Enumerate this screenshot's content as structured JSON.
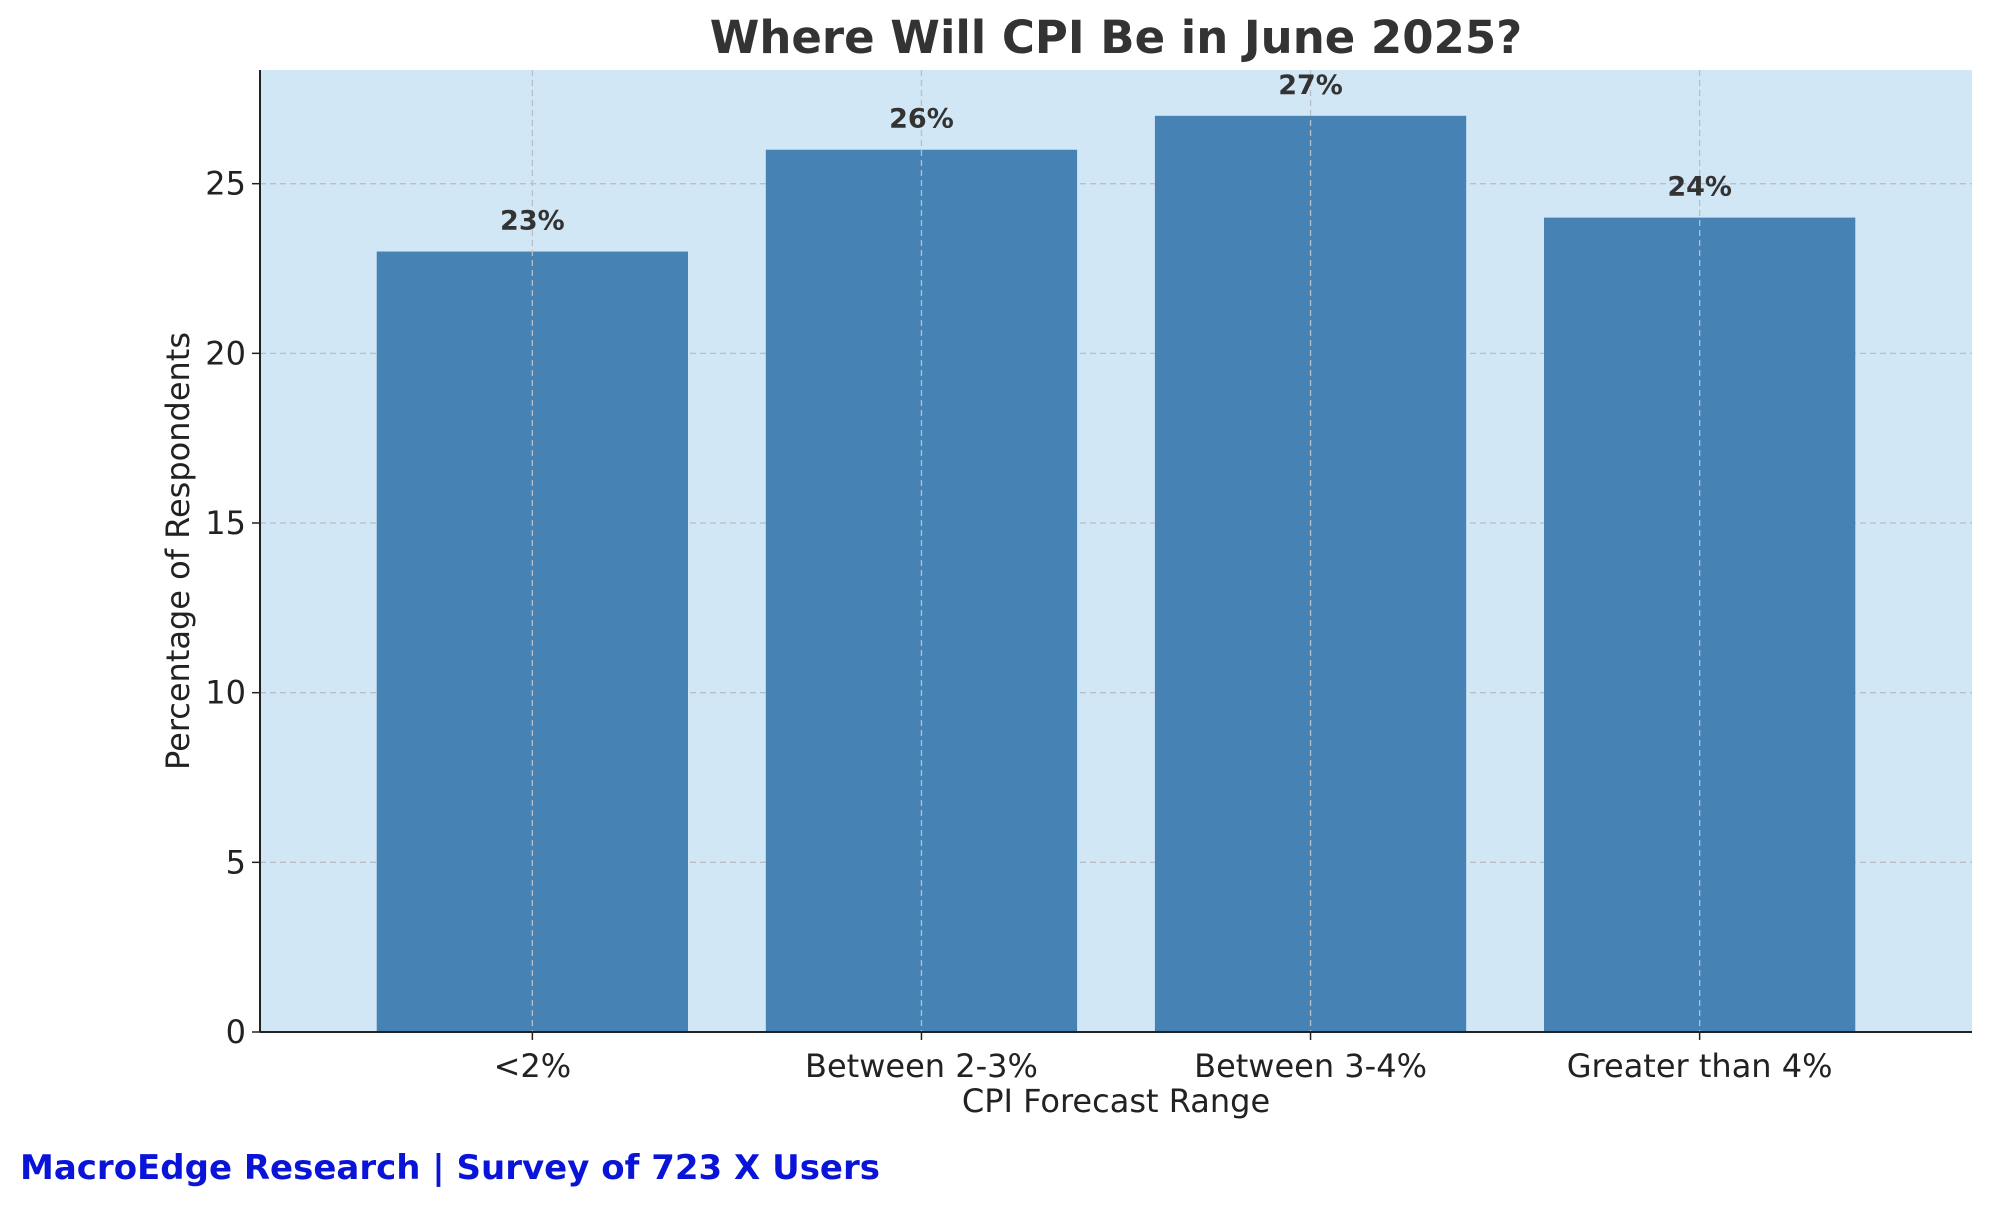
{
  "chart_data": {
    "type": "bar",
    "title": "Where Will CPI Be in June 2025?",
    "xlabel": "CPI Forecast Range",
    "ylabel": "Percentage of Respondents",
    "categories": [
      "<2%",
      "Between 2-3%",
      "Between 3-4%",
      "Greater than 4%"
    ],
    "values": [
      23,
      26,
      27,
      24
    ],
    "data_labels": [
      "23%",
      "26%",
      "27%",
      "24%"
    ],
    "ylim": [
      0,
      28.35
    ],
    "yticks": [
      0,
      5,
      10,
      15,
      20,
      25
    ],
    "grid": true,
    "legend": "none",
    "colors": {
      "bar": "#4682b4",
      "plot_background": "#d1e7f5",
      "grid": "#b8bfc6",
      "axis": "#222222"
    }
  },
  "footer": {
    "credit": "MacroEdge Research | Survey of 723 X Users",
    "color": "#0a14d8"
  }
}
